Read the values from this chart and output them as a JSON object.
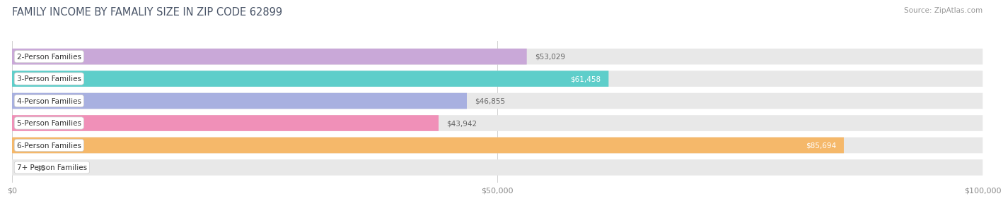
{
  "title": "FAMILY INCOME BY FAMALIY SIZE IN ZIP CODE 62899",
  "source": "Source: ZipAtlas.com",
  "categories": [
    "2-Person Families",
    "3-Person Families",
    "4-Person Families",
    "5-Person Families",
    "6-Person Families",
    "7+ Person Families"
  ],
  "values": [
    53029,
    61458,
    46855,
    43942,
    85694,
    0
  ],
  "bar_colors": [
    "#c9a8d8",
    "#5ececa",
    "#a8b0e0",
    "#f090b8",
    "#f5b86a",
    "#f090b8"
  ],
  "xlim": [
    0,
    100000
  ],
  "xticks": [
    0,
    50000,
    100000
  ],
  "xticklabels": [
    "$0",
    "$50,000",
    "$100,000"
  ],
  "bar_height": 0.72,
  "bar_bg_color": "#e8e8e8",
  "title_color": "#4a5568",
  "title_fontsize": 10.5,
  "source_fontsize": 7.5,
  "label_fontsize": 7.5,
  "value_fontsize": 7.5,
  "tick_fontsize": 8,
  "value_inside_threshold": 60000,
  "value_inside_color": "#ffffff",
  "value_outside_color": "#666666"
}
